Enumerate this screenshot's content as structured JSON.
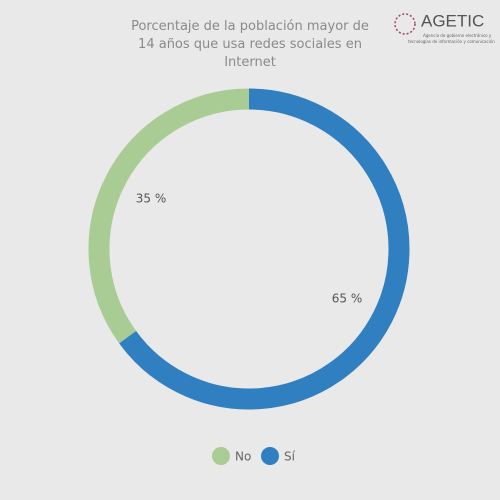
{
  "chart_data": {
    "type": "donut",
    "title": "Porcentaje de la población mayor de 14 años que usa redes sociales en Internet",
    "categories": [
      "No",
      "Sí"
    ],
    "values": [
      35,
      65
    ],
    "value_labels": [
      "35 %",
      "65 %"
    ],
    "colors": [
      "#a8cc94",
      "#2f7fc1"
    ],
    "legend": "bottom"
  },
  "logo": {
    "name": "AGETIC",
    "tagline": [
      "Agencia de gobierno electrónico y",
      "tecnologías de información y comunicación"
    ]
  }
}
